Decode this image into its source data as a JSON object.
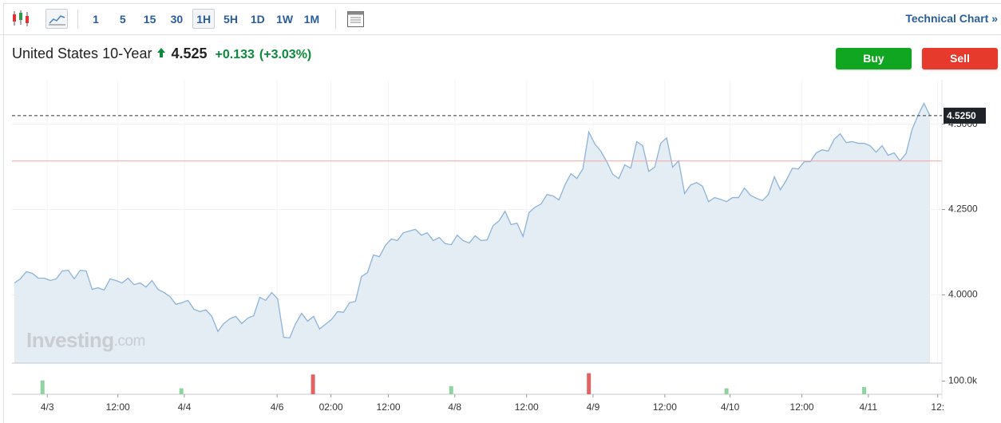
{
  "toolbar": {
    "intervals": [
      "1",
      "5",
      "15",
      "30",
      "1H",
      "5H",
      "1D",
      "1W",
      "1M"
    ],
    "active_index": 4,
    "link": "Technical Chart »"
  },
  "header": {
    "name": "United States 10-Year",
    "last": 4.525,
    "change": "+0.133",
    "change_pct": "(+3.03%)"
  },
  "buttons": {
    "buy": "Buy",
    "sell": "Sell"
  },
  "watermark": {
    "brand": "Investing",
    "suffix": ".com"
  },
  "chart_data": {
    "type": "line",
    "color": "#8db3d9",
    "area_color": "#e4ecf4",
    "grid": true,
    "values": [
      4.035,
      4.047,
      4.068,
      4.063,
      4.049,
      4.049,
      4.042,
      4.047,
      4.07,
      4.072,
      4.047,
      4.072,
      4.07,
      4.016,
      4.021,
      4.014,
      4.047,
      4.042,
      4.035,
      4.049,
      4.03,
      4.035,
      4.023,
      4.042,
      4.016,
      4.007,
      3.995,
      3.972,
      3.977,
      3.984,
      3.958,
      3.951,
      3.956,
      3.937,
      3.893,
      3.916,
      3.93,
      3.937,
      3.916,
      3.932,
      3.939,
      3.993,
      3.984,
      4.007,
      3.988,
      3.876,
      3.874,
      3.916,
      3.946,
      3.923,
      3.937,
      3.9,
      3.914,
      3.928,
      3.951,
      3.949,
      3.977,
      3.981,
      4.054,
      4.065,
      4.117,
      4.112,
      4.145,
      4.164,
      4.159,
      4.182,
      4.187,
      4.192,
      4.175,
      4.182,
      4.159,
      4.168,
      4.15,
      4.147,
      4.175,
      4.159,
      4.152,
      4.173,
      4.159,
      4.161,
      4.203,
      4.217,
      4.245,
      4.206,
      4.21,
      4.171,
      4.241,
      4.257,
      4.266,
      4.294,
      4.29,
      4.278,
      4.322,
      4.355,
      4.341,
      4.369,
      4.477,
      4.442,
      4.421,
      4.39,
      4.353,
      4.341,
      4.381,
      4.371,
      4.449,
      4.437,
      4.362,
      4.374,
      4.444,
      4.46,
      4.374,
      4.393,
      4.297,
      4.322,
      4.329,
      4.318,
      4.273,
      4.285,
      4.28,
      4.273,
      4.285,
      4.285,
      4.313,
      4.292,
      4.283,
      4.276,
      4.294,
      4.346,
      4.308,
      4.336,
      4.371,
      4.369,
      4.39,
      4.39,
      4.416,
      4.425,
      4.421,
      4.456,
      4.472,
      4.446,
      4.449,
      4.444,
      4.444,
      4.437,
      4.418,
      4.437,
      4.409,
      4.416,
      4.393,
      4.414,
      4.484,
      4.526,
      4.561,
      4.525
    ],
    "xlim": [
      -0.4,
      155
    ],
    "xticks": [
      {
        "value": 5.5,
        "label": "4/3"
      },
      {
        "value": 17.3,
        "label": "12:00"
      },
      {
        "value": 28.4,
        "label": "4/4"
      },
      {
        "value": 43.9,
        "label": "4/6"
      },
      {
        "value": 52.9,
        "label": "02:00"
      },
      {
        "value": 62.5,
        "label": "12:00"
      },
      {
        "value": 73.6,
        "label": "4/8"
      },
      {
        "value": 85.6,
        "label": "12:00"
      },
      {
        "value": 96.7,
        "label": "4/9"
      },
      {
        "value": 108.7,
        "label": "12:00"
      },
      {
        "value": 119.6,
        "label": "4/10"
      },
      {
        "value": 131.6,
        "label": "12:00"
      },
      {
        "value": 142.7,
        "label": "4/11"
      },
      {
        "value": 154.3,
        "label": "12:"
      }
    ],
    "ylim": [
      3.8,
      4.63
    ],
    "yticks": [
      {
        "value": 4.0,
        "label": "4.0000"
      },
      {
        "value": 4.25,
        "label": "4.2500"
      },
      {
        "value": 4.5,
        "label": "4.5000"
      }
    ],
    "price_line": {
      "value": 4.525,
      "label": "4.5250"
    },
    "prev_close_line": {
      "value": 4.392,
      "color": "#f4a3a3"
    },
    "volume": {
      "x": [
        4.7,
        27.9,
        49.9,
        73,
        96,
        119,
        142
      ],
      "values": [
        105000,
        45000,
        150000,
        62000,
        160000,
        45000,
        55000
      ],
      "colors": [
        "#8fd3a0",
        "#8fd3a0",
        "#e06464",
        "#8fd3a0",
        "#e06464",
        "#8fd3a0",
        "#8fd3a0"
      ],
      "ylim": [
        0,
        206000
      ],
      "yticks": [
        {
          "value": 100000,
          "label": "100.0k"
        }
      ]
    }
  }
}
